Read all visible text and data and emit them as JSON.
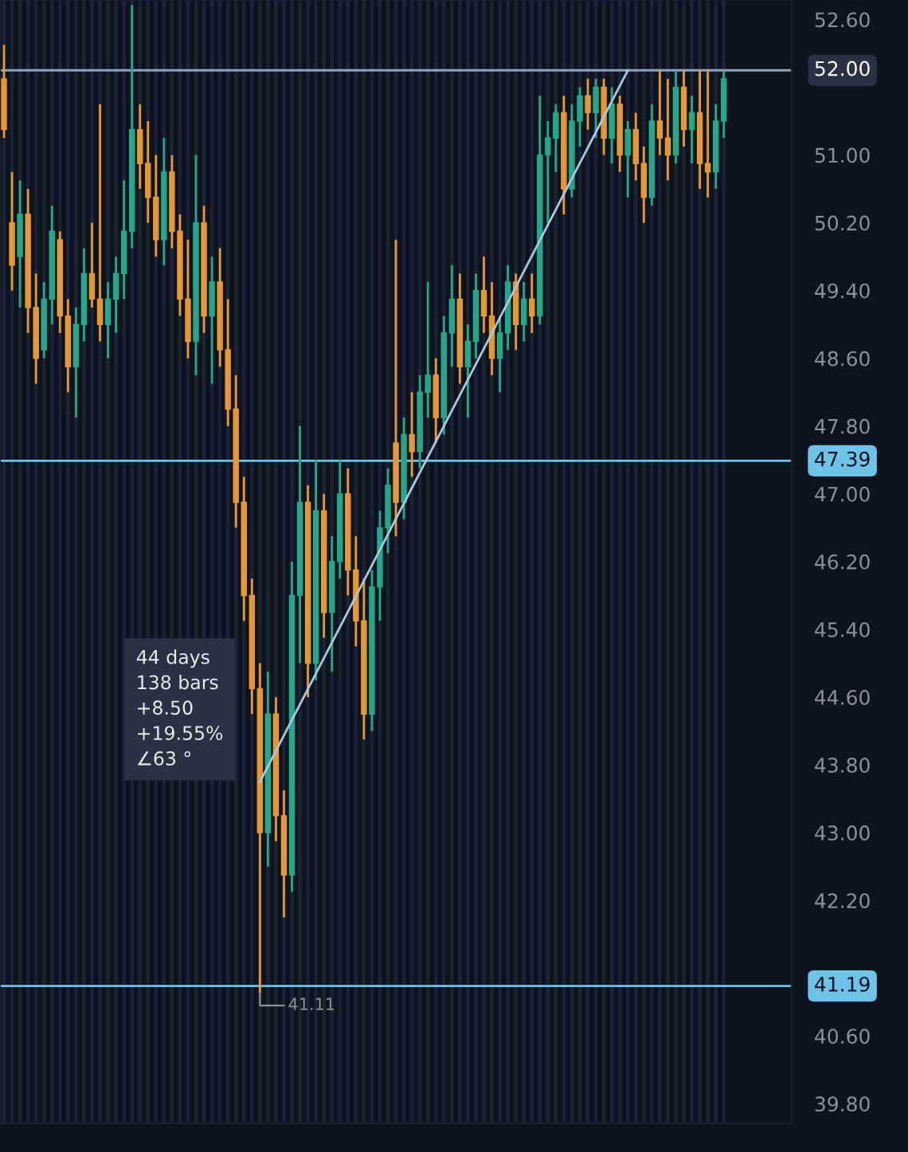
{
  "chart_data": {
    "type": "candlestick",
    "categories": [
      null,
      null,
      null,
      null,
      null,
      null,
      null,
      null,
      null,
      null,
      null,
      null,
      null,
      null,
      null,
      null,
      null,
      null,
      null,
      null,
      null,
      null,
      null,
      null,
      null,
      null,
      null,
      null,
      null,
      null,
      null,
      null,
      null,
      null,
      null,
      null,
      null,
      null,
      null,
      null,
      null,
      null,
      null,
      null,
      null,
      null,
      null,
      null,
      null,
      null,
      null,
      null,
      null,
      null,
      null,
      null,
      null,
      null,
      null,
      null,
      null,
      null,
      null,
      null,
      null,
      null,
      null,
      null,
      null,
      null,
      null,
      null,
      null,
      null,
      null,
      null,
      null,
      null,
      null,
      null,
      null,
      null,
      null,
      null,
      null,
      null,
      null,
      null,
      null,
      null,
      null
    ],
    "ohlc": [
      [
        51.9,
        52.3,
        51.2,
        51.3
      ],
      [
        50.2,
        50.8,
        49.4,
        49.7
      ],
      [
        49.8,
        50.7,
        49.2,
        50.3
      ],
      [
        50.3,
        50.6,
        48.9,
        49.2
      ],
      [
        49.2,
        49.6,
        48.3,
        48.6
      ],
      [
        48.7,
        49.5,
        48.6,
        49.3
      ],
      [
        49.3,
        50.4,
        49.0,
        50.1
      ],
      [
        50.0,
        50.1,
        48.9,
        49.1
      ],
      [
        49.1,
        49.3,
        48.2,
        48.5
      ],
      [
        48.5,
        49.2,
        47.9,
        49.0
      ],
      [
        49.0,
        49.9,
        48.8,
        49.6
      ],
      [
        49.6,
        50.2,
        49.2,
        49.3
      ],
      [
        49.3,
        51.6,
        48.8,
        49.0
      ],
      [
        49.0,
        49.5,
        48.6,
        49.3
      ],
      [
        49.3,
        49.8,
        48.9,
        49.6
      ],
      [
        49.6,
        50.7,
        49.3,
        50.1
      ],
      [
        50.1,
        52.77,
        49.9,
        51.3
      ],
      [
        51.3,
        51.6,
        50.6,
        50.9
      ],
      [
        50.9,
        51.4,
        50.2,
        50.5
      ],
      [
        50.5,
        51.0,
        49.8,
        50.0
      ],
      [
        50.0,
        51.2,
        49.7,
        50.8
      ],
      [
        50.8,
        51.0,
        49.9,
        50.1
      ],
      [
        50.1,
        50.3,
        49.1,
        49.3
      ],
      [
        49.3,
        50.0,
        48.6,
        48.8
      ],
      [
        48.8,
        51.0,
        48.4,
        50.2
      ],
      [
        50.2,
        50.4,
        48.9,
        49.1
      ],
      [
        49.1,
        49.8,
        48.3,
        49.5
      ],
      [
        49.5,
        49.9,
        48.5,
        48.7
      ],
      [
        48.7,
        49.3,
        47.8,
        48.0
      ],
      [
        48.0,
        48.4,
        46.6,
        46.9
      ],
      [
        46.9,
        47.2,
        45.5,
        45.8
      ],
      [
        45.8,
        46.0,
        44.4,
        44.7
      ],
      [
        44.7,
        45.0,
        41.11,
        43.0
      ],
      [
        43.0,
        44.9,
        42.6,
        44.4
      ],
      [
        44.4,
        44.6,
        42.9,
        43.2
      ],
      [
        43.2,
        43.5,
        42.0,
        42.5
      ],
      [
        42.5,
        46.2,
        42.3,
        45.8
      ],
      [
        45.8,
        47.8,
        45.0,
        46.9
      ],
      [
        46.9,
        47.1,
        44.6,
        45.0
      ],
      [
        45.0,
        47.4,
        44.8,
        46.8
      ],
      [
        46.8,
        47.0,
        45.3,
        45.6
      ],
      [
        45.6,
        46.5,
        44.9,
        46.2
      ],
      [
        46.2,
        47.4,
        46.0,
        47.0
      ],
      [
        47.0,
        47.3,
        45.8,
        46.1
      ],
      [
        46.1,
        46.5,
        45.2,
        45.5
      ],
      [
        45.5,
        46.0,
        44.1,
        44.4
      ],
      [
        44.4,
        46.1,
        44.2,
        45.9
      ],
      [
        45.9,
        46.8,
        45.5,
        46.6
      ],
      [
        46.6,
        47.3,
        46.3,
        47.1
      ],
      [
        47.6,
        50.0,
        46.5,
        46.9
      ],
      [
        46.9,
        47.9,
        46.7,
        47.7
      ],
      [
        47.7,
        48.2,
        47.2,
        47.5
      ],
      [
        47.5,
        48.4,
        47.3,
        48.2
      ],
      [
        48.2,
        49.5,
        47.9,
        48.4
      ],
      [
        48.4,
        48.6,
        47.6,
        47.9
      ],
      [
        47.9,
        49.1,
        47.7,
        48.9
      ],
      [
        48.9,
        49.7,
        48.5,
        49.3
      ],
      [
        49.3,
        49.6,
        48.3,
        48.5
      ],
      [
        48.5,
        49.0,
        47.9,
        48.8
      ],
      [
        48.8,
        49.6,
        48.6,
        49.4
      ],
      [
        49.4,
        49.8,
        48.9,
        49.1
      ],
      [
        49.1,
        49.5,
        48.4,
        48.6
      ],
      [
        48.6,
        49.1,
        48.2,
        48.9
      ],
      [
        48.9,
        49.7,
        48.7,
        49.5
      ],
      [
        49.5,
        49.6,
        48.7,
        49.0
      ],
      [
        49.0,
        49.5,
        48.8,
        49.3
      ],
      [
        49.3,
        49.6,
        48.9,
        49.1
      ],
      [
        49.1,
        51.7,
        49.0,
        51.0
      ],
      [
        51.0,
        51.4,
        50.2,
        51.2
      ],
      [
        51.2,
        51.6,
        50.8,
        51.5
      ],
      [
        51.5,
        51.7,
        50.3,
        50.6
      ],
      [
        50.6,
        51.6,
        50.5,
        51.4
      ],
      [
        51.4,
        51.8,
        51.1,
        51.7
      ],
      [
        51.7,
        51.9,
        51.3,
        51.5
      ],
      [
        51.5,
        51.9,
        51.2,
        51.8
      ],
      [
        51.8,
        51.9,
        51.0,
        51.2
      ],
      [
        51.2,
        51.8,
        50.9,
        51.6
      ],
      [
        51.6,
        51.7,
        50.8,
        51.0
      ],
      [
        51.0,
        51.4,
        50.5,
        51.3
      ],
      [
        51.3,
        51.5,
        50.7,
        50.9
      ],
      [
        50.9,
        51.1,
        50.2,
        50.5
      ],
      [
        50.5,
        51.6,
        50.4,
        51.4
      ],
      [
        51.4,
        52.0,
        51.0,
        51.2
      ],
      [
        51.2,
        51.9,
        50.7,
        51.0
      ],
      [
        51.0,
        52.0,
        50.9,
        51.8
      ],
      [
        51.8,
        52.0,
        51.1,
        51.3
      ],
      [
        51.3,
        51.7,
        50.9,
        51.5
      ],
      [
        51.5,
        52.0,
        50.6,
        50.9
      ],
      [
        50.9,
        52.0,
        50.5,
        50.8
      ],
      [
        50.8,
        51.6,
        50.6,
        51.4
      ],
      [
        51.4,
        52.0,
        51.2,
        51.9
      ]
    ],
    "colors": [
      "#e8982e",
      "#e8982e",
      "#22a98c",
      "#e8982e",
      "#e8982e",
      "#22a98c",
      "#22a98c",
      "#e8982e",
      "#e8982e",
      "#22a98c",
      "#22a98c",
      "#e8982e",
      "#e8982e",
      "#22a98c",
      "#22a98c",
      "#22a98c",
      "#22a98c",
      "#e8982e",
      "#e8982e",
      "#e8982e",
      "#22a98c",
      "#e8982e",
      "#e8982e",
      "#e8982e",
      "#22a98c",
      "#e8982e",
      "#22a98c",
      "#e8982e",
      "#e8982e",
      "#e8982e",
      "#e8982e",
      "#e8982e",
      "#e8982e",
      "#22a98c",
      "#e8982e",
      "#e8982e",
      "#22a98c",
      "#22a98c",
      "#e8982e",
      "#22a98c",
      "#e8982e",
      "#22a98c",
      "#22a98c",
      "#e8982e",
      "#e8982e",
      "#e8982e",
      "#22a98c",
      "#22a98c",
      "#22a98c",
      "#e8982e",
      "#22a98c",
      "#e8982e",
      "#22a98c",
      "#22a98c",
      "#e8982e",
      "#22a98c",
      "#22a98c",
      "#e8982e",
      "#22a98c",
      "#22a98c",
      "#e8982e",
      "#e8982e",
      "#22a98c",
      "#22a98c",
      "#e8982e",
      "#22a98c",
      "#e8982e",
      "#22a98c",
      "#22a98c",
      "#22a98c",
      "#e8982e",
      "#22a98c",
      "#22a98c",
      "#e8982e",
      "#22a98c",
      "#e8982e",
      "#22a98c",
      "#e8982e",
      "#22a98c",
      "#e8982e",
      "#e8982e",
      "#22a98c",
      "#e8982e",
      "#e8982e",
      "#22a98c",
      "#e8982e",
      "#22a98c",
      "#e8982e",
      "#e8982e",
      "#22a98c",
      "#22a98c"
    ],
    "series": [
      {
        "type": "line",
        "color": "#a9c8e0",
        "values": [
          null,
          null,
          null,
          null,
          null,
          null,
          null,
          null,
          null,
          null,
          null,
          null,
          null,
          null,
          null,
          null,
          null,
          null,
          null,
          null,
          null,
          null,
          null,
          null,
          null,
          null,
          null,
          null,
          null,
          null,
          null,
          null,
          43.6,
          null,
          null,
          null,
          null,
          null,
          null,
          null,
          null,
          null,
          null,
          null,
          null,
          null,
          null,
          null,
          null,
          null,
          null,
          null,
          null,
          null,
          null,
          null,
          null,
          null,
          null,
          null,
          null,
          null,
          null,
          null,
          null,
          null,
          null,
          null,
          null,
          null,
          null,
          null,
          null,
          null,
          null,
          null,
          null,
          null,
          52.0,
          null,
          null,
          null,
          null,
          null,
          null,
          null,
          null,
          null,
          null,
          null,
          null
        ]
      }
    ],
    "ylim": [
      39.57,
      52.83
    ],
    "yticks": [
      {
        "value": 52.6,
        "label": "52.60"
      },
      {
        "value": 51.0,
        "label": "51.00"
      },
      {
        "value": 50.2,
        "label": "50.20"
      },
      {
        "value": 49.4,
        "label": "49.40"
      },
      {
        "value": 48.6,
        "label": "48.60"
      },
      {
        "value": 47.8,
        "label": "47.80"
      },
      {
        "value": 47.0,
        "label": "47.00"
      },
      {
        "value": 46.2,
        "label": "46.20"
      },
      {
        "value": 45.4,
        "label": "45.40"
      },
      {
        "value": 44.6,
        "label": "44.60"
      },
      {
        "value": 43.8,
        "label": "43.80"
      },
      {
        "value": 43.0,
        "label": "43.00"
      },
      {
        "value": 42.2,
        "label": "42.20"
      },
      {
        "value": 40.6,
        "label": "40.60"
      },
      {
        "value": 39.8,
        "label": "39.80"
      }
    ],
    "ref_lines": [
      {
        "axis": "y",
        "value": 52.0,
        "label": "52.00",
        "color": "#8fa6bd"
      },
      {
        "axis": "y",
        "value": 47.39,
        "label": "47.39",
        "color": "#6fc3e6"
      },
      {
        "axis": "y",
        "value": 41.19,
        "label": "41.19",
        "color": "#6fc3e6"
      }
    ],
    "annotations": [
      "44 days\n138 bars\n+8.50\n+19.55%\n∠63 °",
      {
        "text": "41.11",
        "y": 41.11
      }
    ],
    "grid": "x"
  }
}
